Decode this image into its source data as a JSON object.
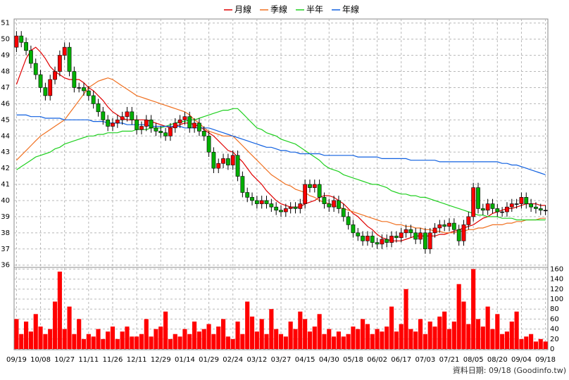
{
  "chart_data": {
    "type": "candlestick",
    "categories": [
      "09/19",
      null,
      null,
      null,
      null,
      "10/08",
      null,
      null,
      null,
      null,
      "10/27",
      null,
      null,
      null,
      null,
      "11/11",
      null,
      null,
      null,
      null,
      "11/26",
      null,
      null,
      null,
      null,
      "12/11",
      null,
      null,
      null,
      null,
      "12/29",
      null,
      null,
      null,
      null,
      "01/14",
      null,
      null,
      null,
      null,
      "01/29",
      null,
      null,
      null,
      null,
      "02/24",
      null,
      null,
      null,
      null,
      "03/12",
      null,
      null,
      null,
      null,
      "03/27",
      null,
      null,
      null,
      null,
      "04/15",
      null,
      null,
      null,
      null,
      "04/30",
      null,
      null,
      null,
      null,
      "05/18",
      null,
      null,
      null,
      null,
      "06/02",
      null,
      null,
      null,
      null,
      "06/17",
      null,
      null,
      null,
      null,
      "07/03",
      null,
      null,
      null,
      null,
      "07/21",
      null,
      null,
      null,
      null,
      "08/05",
      null,
      null,
      null,
      null,
      "08/20",
      null,
      null,
      null,
      null,
      "09/04",
      null,
      null,
      null,
      null,
      "09/18"
    ],
    "open": [
      49.5,
      50.2,
      49.8,
      49.3,
      48.5,
      47.8,
      47.0,
      46.5,
      47.5,
      48.0,
      49.0,
      49.5,
      48.0,
      47.0,
      47.0,
      46.8,
      46.5,
      46.0,
      45.5,
      45.0,
      44.6,
      44.8,
      45.0,
      45.2,
      45.5,
      45.0,
      44.4,
      44.6,
      45.0,
      44.5,
      44.3,
      44.2,
      44.0,
      44.5,
      44.8,
      45.0,
      45.2,
      44.5,
      44.8,
      44.3,
      44.0,
      43.0,
      42.0,
      42.3,
      42.6,
      42.2,
      42.8,
      41.5,
      40.5,
      40.2,
      40.0,
      39.8,
      40.0,
      39.8,
      39.6,
      39.4,
      39.3,
      39.5,
      39.6,
      39.5,
      39.8,
      41.0,
      40.8,
      41.0,
      40.2,
      39.8,
      39.6,
      40.0,
      39.5,
      39.0,
      38.5,
      38.0,
      37.8,
      37.5,
      37.8,
      37.4,
      37.3,
      37.6,
      37.4,
      37.8,
      37.7,
      38.0,
      38.2,
      38.0,
      37.6,
      38.0,
      37.0,
      38.0,
      38.3,
      38.5,
      38.4,
      38.6,
      38.2,
      37.5,
      38.5,
      39.0,
      40.8,
      39.5,
      39.4,
      39.8,
      39.5,
      39.3,
      39.3,
      39.6,
      39.8,
      39.8,
      40.2,
      39.8,
      39.6,
      39.5,
      39.4
    ],
    "high": [
      50.5,
      50.5,
      50.1,
      49.6,
      48.8,
      48.1,
      47.3,
      47.8,
      48.3,
      49.3,
      49.8,
      49.8,
      48.3,
      47.3,
      47.3,
      47.1,
      46.8,
      46.3,
      45.8,
      45.3,
      45.1,
      45.3,
      45.5,
      45.8,
      45.8,
      45.3,
      44.9,
      45.3,
      45.3,
      44.8,
      44.6,
      44.5,
      44.8,
      45.1,
      45.3,
      45.5,
      45.5,
      45.1,
      45.1,
      44.6,
      44.3,
      43.3,
      42.6,
      42.9,
      42.9,
      43.1,
      43.1,
      41.8,
      40.8,
      40.5,
      40.3,
      40.3,
      40.3,
      40.1,
      39.9,
      39.7,
      39.8,
      39.9,
      39.9,
      40.1,
      41.3,
      41.3,
      41.3,
      41.3,
      40.5,
      40.1,
      40.3,
      40.3,
      39.8,
      39.3,
      38.8,
      38.3,
      38.1,
      38.1,
      38.1,
      37.7,
      37.9,
      37.9,
      38.1,
      38.1,
      38.3,
      38.5,
      38.5,
      38.3,
      38.3,
      38.3,
      38.3,
      38.6,
      38.8,
      38.8,
      38.9,
      38.9,
      38.5,
      38.8,
      39.3,
      41.1,
      41.1,
      39.8,
      40.1,
      40.1,
      39.8,
      39.6,
      39.9,
      40.1,
      40.1,
      40.5,
      40.5,
      40.1,
      39.9,
      39.8,
      39.7
    ],
    "low": [
      49.2,
      49.5,
      49.0,
      48.2,
      47.5,
      46.7,
      46.2,
      46.2,
      47.2,
      47.7,
      48.7,
      47.7,
      46.7,
      46.7,
      46.5,
      46.2,
      45.7,
      45.2,
      44.7,
      44.3,
      44.3,
      44.5,
      44.7,
      44.9,
      44.7,
      44.1,
      44.1,
      44.3,
      44.2,
      44.0,
      43.9,
      43.7,
      43.7,
      44.2,
      44.5,
      44.7,
      44.2,
      44.2,
      44.0,
      43.7,
      42.7,
      41.7,
      41.7,
      42.0,
      41.9,
      41.9,
      41.2,
      40.2,
      39.9,
      39.7,
      39.5,
      39.5,
      39.5,
      39.3,
      39.1,
      39.0,
      39.0,
      39.2,
      39.2,
      39.2,
      39.5,
      40.5,
      40.5,
      39.9,
      39.5,
      39.3,
      39.3,
      39.2,
      38.7,
      38.2,
      37.7,
      37.5,
      37.2,
      37.2,
      37.1,
      37.0,
      37.0,
      37.1,
      37.1,
      37.4,
      37.4,
      37.7,
      37.7,
      37.3,
      37.3,
      36.7,
      36.7,
      37.7,
      38.0,
      38.1,
      38.1,
      37.9,
      37.2,
      37.2,
      38.2,
      38.7,
      39.2,
      39.1,
      39.1,
      39.2,
      39.0,
      39.0,
      39.0,
      39.3,
      39.5,
      39.5,
      39.5,
      39.3,
      39.2,
      39.1,
      39.1
    ],
    "close": [
      50.2,
      49.8,
      49.3,
      48.5,
      47.8,
      47.0,
      46.5,
      47.5,
      48.0,
      49.0,
      49.5,
      48.0,
      47.0,
      47.0,
      46.8,
      46.5,
      46.0,
      45.5,
      45.0,
      44.6,
      44.8,
      45.0,
      45.2,
      45.5,
      45.0,
      44.4,
      44.6,
      45.0,
      44.5,
      44.3,
      44.2,
      44.0,
      44.5,
      44.8,
      45.0,
      45.2,
      44.5,
      44.8,
      44.3,
      44.0,
      43.0,
      42.0,
      42.3,
      42.6,
      42.2,
      42.8,
      41.5,
      40.5,
      40.2,
      40.0,
      39.8,
      40.0,
      39.8,
      39.6,
      39.4,
      39.3,
      39.5,
      39.6,
      39.5,
      39.8,
      41.0,
      40.8,
      41.0,
      40.2,
      39.8,
      39.6,
      40.0,
      39.5,
      39.0,
      38.5,
      38.0,
      37.8,
      37.5,
      37.8,
      37.4,
      37.3,
      37.6,
      37.4,
      37.8,
      37.7,
      38.0,
      38.2,
      38.0,
      37.6,
      38.0,
      37.0,
      38.0,
      38.3,
      38.5,
      38.4,
      38.6,
      38.2,
      37.5,
      38.5,
      39.0,
      40.8,
      39.5,
      39.4,
      39.8,
      39.5,
      39.3,
      39.3,
      39.6,
      39.8,
      39.8,
      40.2,
      39.8,
      39.6,
      39.5,
      39.4,
      39.4
    ],
    "up_color": "#ff0000",
    "down_color": "#00b000",
    "series": [
      {
        "name": "月線",
        "color": "#e00000",
        "values": [
          47.2,
          48.0,
          48.8,
          49.3,
          49.5,
          49.2,
          48.8,
          48.3,
          48.0,
          47.8,
          47.6,
          47.5,
          47.5,
          47.5,
          47.3,
          47.0,
          46.8,
          46.5,
          46.2,
          45.8,
          45.5,
          45.3,
          45.1,
          45.0,
          45.0,
          45.0,
          45.0,
          45.0,
          44.9,
          44.8,
          44.7,
          44.6,
          44.5,
          44.6,
          44.7,
          44.8,
          44.8,
          44.7,
          44.6,
          44.4,
          44.2,
          44.0,
          43.7,
          43.4,
          43.1,
          43.0,
          42.7,
          42.4,
          42.0,
          41.6,
          41.3,
          41.0,
          40.6,
          40.3,
          40.0,
          39.8,
          39.7,
          39.6,
          39.6,
          39.6,
          39.8,
          39.9,
          40.0,
          40.2,
          40.3,
          40.3,
          40.2,
          40.0,
          39.8,
          39.5,
          39.2,
          39.0,
          38.7,
          38.4,
          38.2,
          37.9,
          37.7,
          37.6,
          37.5,
          37.5,
          37.5,
          37.6,
          37.7,
          37.8,
          37.8,
          37.8,
          37.8,
          37.8,
          37.9,
          37.9,
          38.0,
          38.1,
          38.2,
          38.3,
          38.4,
          38.5,
          38.7,
          38.9,
          39.0,
          39.2,
          39.3,
          39.4,
          39.5,
          39.5,
          39.6,
          39.7,
          39.8,
          39.8,
          39.8,
          39.7,
          39.7
        ]
      },
      {
        "name": "季線",
        "color": "#f07020",
        "values": [
          42.5,
          42.8,
          43.1,
          43.4,
          43.7,
          44.0,
          44.2,
          44.4,
          44.6,
          44.8,
          45.0,
          45.4,
          45.8,
          46.2,
          46.6,
          47.0,
          47.2,
          47.4,
          47.5,
          47.6,
          47.5,
          47.3,
          47.1,
          46.9,
          46.7,
          46.5,
          46.4,
          46.3,
          46.2,
          46.1,
          46.0,
          45.9,
          45.8,
          45.7,
          45.6,
          45.5,
          45.3,
          45.0,
          44.8,
          44.5,
          44.3,
          44.2,
          44.1,
          44.0,
          44.0,
          44.0,
          43.7,
          43.4,
          43.1,
          42.8,
          42.5,
          42.2,
          41.9,
          41.6,
          41.4,
          41.2,
          41.0,
          40.9,
          40.7,
          40.6,
          40.5,
          40.3,
          40.2,
          40.0,
          39.9,
          39.8,
          39.7,
          39.6,
          39.5,
          39.4,
          39.3,
          39.2,
          39.1,
          39.0,
          38.9,
          38.8,
          38.7,
          38.7,
          38.6,
          38.5,
          38.5,
          38.4,
          38.4,
          38.3,
          38.3,
          38.2,
          38.2,
          38.1,
          38.1,
          38.0,
          38.0,
          38.0,
          38.1,
          38.1,
          38.2,
          38.2,
          38.3,
          38.3,
          38.4,
          38.5,
          38.5,
          38.5,
          38.6,
          38.6,
          38.7,
          38.7,
          38.8,
          38.8,
          38.8,
          38.9,
          38.9
        ]
      },
      {
        "name": "半年",
        "color": "#20d020",
        "values": [
          41.9,
          42.1,
          42.3,
          42.5,
          42.7,
          42.8,
          42.9,
          43.0,
          43.2,
          43.3,
          43.5,
          43.6,
          43.7,
          43.8,
          43.9,
          44.0,
          44.0,
          44.1,
          44.1,
          44.2,
          44.2,
          44.2,
          44.3,
          44.3,
          44.3,
          44.4,
          44.4,
          44.4,
          44.5,
          44.5,
          44.5,
          44.6,
          44.7,
          44.8,
          44.9,
          44.9,
          45.0,
          45.0,
          45.1,
          45.2,
          45.3,
          45.4,
          45.5,
          45.6,
          45.6,
          45.7,
          45.7,
          45.4,
          45.1,
          44.8,
          44.5,
          44.4,
          44.2,
          44.1,
          44.0,
          43.8,
          43.7,
          43.6,
          43.5,
          43.3,
          43.1,
          42.9,
          42.7,
          42.5,
          42.2,
          42.0,
          41.9,
          41.8,
          41.6,
          41.5,
          41.4,
          41.3,
          41.2,
          41.1,
          41.0,
          41.0,
          40.9,
          40.8,
          40.6,
          40.5,
          40.4,
          40.4,
          40.3,
          40.3,
          40.2,
          40.2,
          40.1,
          40.0,
          39.9,
          39.8,
          39.7,
          39.6,
          39.5,
          39.4,
          39.3,
          39.2,
          39.1,
          39.1,
          39.0,
          39.0,
          39.0,
          38.9,
          38.9,
          38.9,
          38.8,
          38.8,
          38.8,
          38.8,
          38.8,
          38.8,
          38.8
        ]
      },
      {
        "name": "年線",
        "color": "#1060e0",
        "values": [
          45.3,
          45.3,
          45.3,
          45.2,
          45.2,
          45.2,
          45.1,
          45.1,
          45.1,
          45.1,
          45.0,
          45.0,
          45.0,
          45.0,
          45.0,
          45.0,
          44.9,
          44.9,
          44.9,
          44.8,
          44.8,
          44.8,
          44.8,
          44.7,
          44.7,
          44.7,
          44.7,
          44.7,
          44.6,
          44.6,
          44.6,
          44.6,
          44.6,
          44.6,
          44.6,
          44.5,
          44.5,
          44.5,
          44.5,
          44.5,
          44.5,
          44.4,
          44.3,
          44.2,
          44.1,
          44.0,
          43.9,
          43.8,
          43.7,
          43.6,
          43.5,
          43.4,
          43.3,
          43.3,
          43.2,
          43.1,
          43.1,
          43.0,
          43.0,
          42.9,
          42.9,
          42.9,
          42.9,
          42.9,
          42.8,
          42.8,
          42.8,
          42.8,
          42.8,
          42.8,
          42.8,
          42.7,
          42.7,
          42.7,
          42.7,
          42.7,
          42.6,
          42.6,
          42.6,
          42.6,
          42.6,
          42.6,
          42.5,
          42.5,
          42.5,
          42.5,
          42.5,
          42.5,
          42.4,
          42.4,
          42.4,
          42.4,
          42.4,
          42.4,
          42.4,
          42.4,
          42.4,
          42.4,
          42.4,
          42.4,
          42.4,
          42.3,
          42.3,
          42.2,
          42.2,
          42.1,
          42.0,
          41.9,
          41.8,
          41.7,
          41.6
        ]
      }
    ],
    "ylim": [
      35.9,
      51.25
    ],
    "yticks": [
      36,
      37,
      38,
      39,
      40,
      41,
      42,
      43,
      44,
      45,
      46,
      47,
      48,
      49,
      50,
      51
    ],
    "volume": {
      "color": "#ff0000",
      "values": [
        60,
        30,
        55,
        35,
        70,
        45,
        30,
        40,
        95,
        155,
        40,
        85,
        30,
        60,
        20,
        30,
        25,
        40,
        20,
        35,
        45,
        20,
        35,
        45,
        25,
        25,
        30,
        60,
        25,
        40,
        45,
        75,
        20,
        30,
        25,
        40,
        30,
        55,
        35,
        40,
        50,
        30,
        45,
        60,
        25,
        20,
        55,
        30,
        95,
        65,
        35,
        60,
        30,
        80,
        40,
        30,
        25,
        55,
        40,
        75,
        60,
        35,
        45,
        70,
        30,
        40,
        25,
        35,
        25,
        30,
        45,
        40,
        60,
        50,
        30,
        40,
        35,
        45,
        85,
        35,
        50,
        120,
        40,
        35,
        60,
        30,
        55,
        45,
        65,
        75,
        40,
        55,
        130,
        95,
        50,
        160,
        60,
        45,
        85,
        40,
        70,
        30,
        35,
        55,
        75,
        20,
        25,
        30,
        15,
        20,
        15
      ],
      "ylim": [
        0,
        162
      ],
      "yticks": [
        0,
        20,
        40,
        60,
        80,
        100,
        120,
        140,
        160
      ]
    },
    "grid": true,
    "footer": "資料日期: 09/18 (Goodinfo.tw)"
  }
}
